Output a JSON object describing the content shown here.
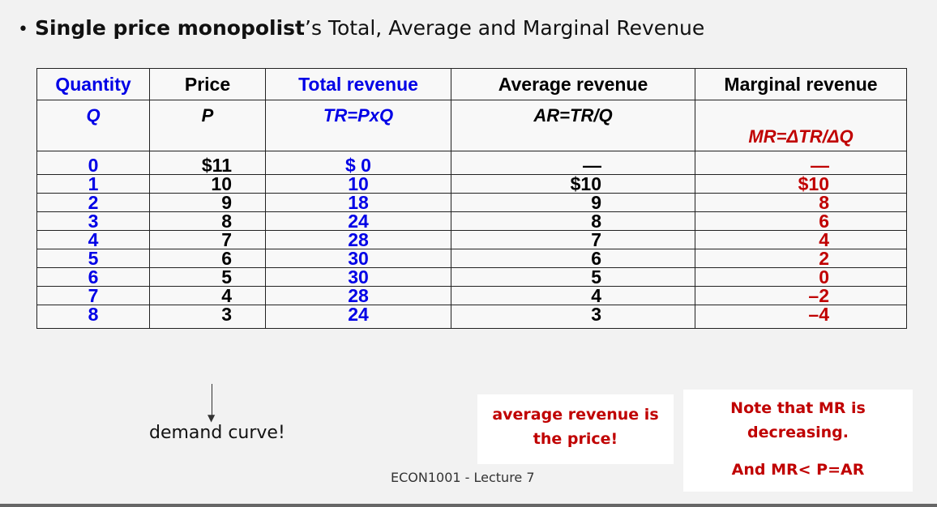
{
  "title": {
    "bullet": "•",
    "bold": "Single price monopolist",
    "rest": "’s Total, Average and Marginal Revenue"
  },
  "table": {
    "headers": [
      "Quantity",
      "Price",
      "Total revenue",
      "Average revenue",
      "Marginal revenue"
    ],
    "formulas": [
      "Q",
      "P",
      "TR=PxQ",
      "AR=TR/Q",
      "MR=ΔTR/ΔQ"
    ],
    "rows": [
      {
        "q": "0",
        "p": "$11",
        "tr": "$ 0",
        "ar": "—",
        "mr": "—"
      },
      {
        "q": "1",
        "p": "10",
        "tr": "10",
        "ar": "$10",
        "mr": "$10"
      },
      {
        "q": "2",
        "p": "9",
        "tr": "18",
        "ar": "9",
        "mr": "8"
      },
      {
        "q": "3",
        "p": "8",
        "tr": "24",
        "ar": "8",
        "mr": "6"
      },
      {
        "q": "4",
        "p": "7",
        "tr": "28",
        "ar": "7",
        "mr": "4"
      },
      {
        "q": "5",
        "p": "6",
        "tr": "30",
        "ar": "6",
        "mr": "2"
      },
      {
        "q": "6",
        "p": "5",
        "tr": "30",
        "ar": "5",
        "mr": "0"
      },
      {
        "q": "7",
        "p": "4",
        "tr": "28",
        "ar": "4",
        "mr": "–2"
      },
      {
        "q": "8",
        "p": "3",
        "tr": "24",
        "ar": "3",
        "mr": "–4"
      }
    ]
  },
  "annotations": {
    "demand": "demand curve!",
    "avg_note_line1": "average revenue is",
    "avg_note_line2": "the price!",
    "mr_note_line1": "Note that MR is",
    "mr_note_line2": "decreasing.",
    "mr_note_line3": "And MR< P=AR"
  },
  "footer": "ECON1001 - Lecture 7",
  "colors": {
    "blue": "#0000e6",
    "red": "#c00000",
    "background": "#f2f2f2"
  }
}
